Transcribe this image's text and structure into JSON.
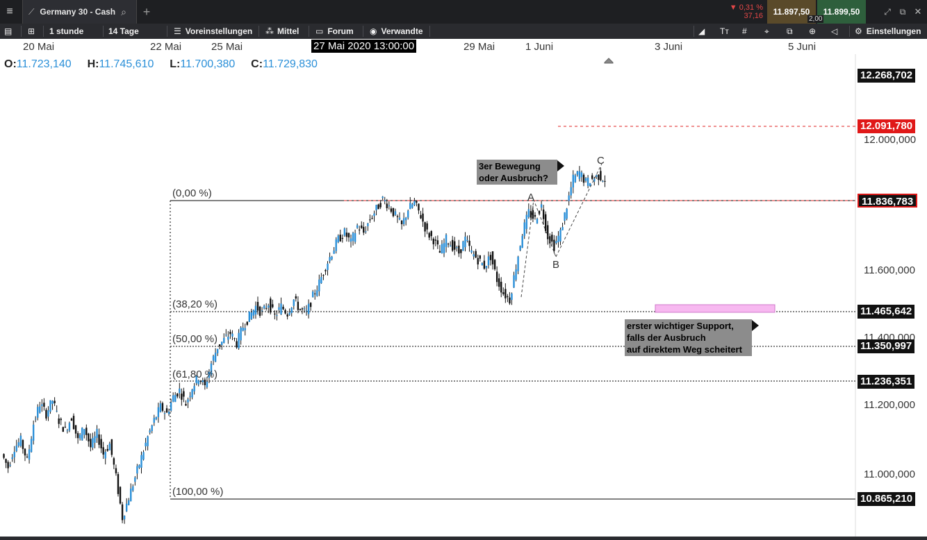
{
  "window": {
    "instrument": "Germany 30 - Cash",
    "change_pct": "▼ 0,31 %",
    "change_abs": "37,16",
    "bid": "11.897,50",
    "ask": "11.899,50",
    "spread": "2,00"
  },
  "toolbar": {
    "interval": "1 stunde",
    "range": "14 Tage",
    "presets": "Voreinstellungen",
    "average": "Mittel",
    "forum": "Forum",
    "related": "Verwandte",
    "settings": "Einstellungen"
  },
  "dates": {
    "d1": "20 Mai",
    "d2": "22 Mai",
    "d3": "25 Mai",
    "cursor": "27 Mai 2020 13:00:00",
    "d4": "29 Mai",
    "d5": "1 Juni",
    "d6": "3 Juni",
    "d7": "5 Juni"
  },
  "ohlc": {
    "o_label": "O:",
    "o": "11.723,140",
    "h_label": "H:",
    "h": "11.745,610",
    "l_label": "L:",
    "l": "11.700,380",
    "c_label": "C:",
    "c": "11.729,830"
  },
  "axis": {
    "top": "12.268,702",
    "ticks": [
      "12.000,000",
      "11.600,000",
      "11.400,000",
      "11.200,000",
      "11.000,000"
    ],
    "target": "12.091,780",
    "resistance": "11.836,783",
    "fib382": "11.465,642",
    "fib50": "11.350,997",
    "fib618": "11.236,351",
    "fib100": "10.865,210"
  },
  "fib": {
    "l0": "(0,00 %)",
    "l382": "(38,20 %)",
    "l50": "(50,00 %)",
    "l618": "(61,80 %)",
    "l100": "(100,00 %)"
  },
  "annotations": {
    "question_line1": "3er Bewegung",
    "question_line2": "oder Ausbruch?",
    "support_line1": "erster wichtiger Support,",
    "support_line2": "falls der Ausbruch",
    "support_line3": "auf direktem Weg scheitert",
    "wave_a": "A",
    "wave_b": "B",
    "wave_c": "C"
  },
  "colors": {
    "candle_up": "#2a8fd8",
    "candle_down": "#111111",
    "target_line": "#e02020",
    "support_zone": "#f7b8f0"
  },
  "chart_data": {
    "type": "candlestick",
    "path": [
      11060,
      11020,
      11080,
      11100,
      11040,
      11150,
      11210,
      11180,
      11220,
      11160,
      11130,
      11170,
      11100,
      11140,
      11080,
      11120,
      11060,
      11090,
      10990,
      10870,
      10930,
      10990,
      11050,
      11110,
      11160,
      11200,
      11180,
      11230,
      11250,
      11210,
      11260,
      11290,
      11260,
      11330,
      11380,
      11400,
      11420,
      11390,
      11440,
      11470,
      11500,
      11480,
      11510,
      11470,
      11500,
      11480,
      11520,
      11490,
      11480,
      11530,
      11570,
      11620,
      11660,
      11700,
      11720,
      11690,
      11740,
      11720,
      11760,
      11790,
      11820,
      11800,
      11770,
      11740,
      11790,
      11810,
      11770,
      11720,
      11700,
      11660,
      11700,
      11680,
      11660,
      11700,
      11660,
      11640,
      11620,
      11650,
      11580,
      11540,
      11520,
      11620,
      11720,
      11780,
      11760,
      11800,
      11710,
      11680,
      11720,
      11800,
      11880,
      11900,
      11870,
      11880,
      11890,
      11880
    ]
  }
}
